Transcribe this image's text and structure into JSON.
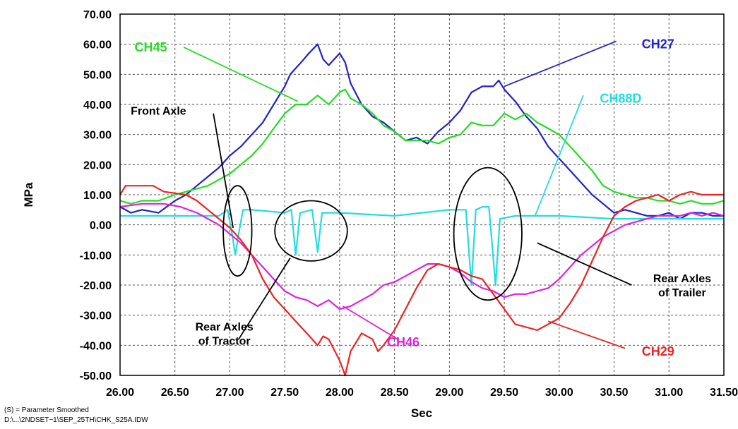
{
  "chart_data": {
    "type": "line",
    "title": "",
    "xlabel": "Sec",
    "ylabel": "MPa",
    "xlim": [
      26.0,
      31.5
    ],
    "ylim": [
      -50,
      70
    ],
    "grid": true,
    "x_ticks": [
      "26.00",
      "26.50",
      "27.00",
      "27.50",
      "28.00",
      "28.50",
      "29.00",
      "29.50",
      "30.00",
      "30.50",
      "31.00",
      "31.50"
    ],
    "y_ticks": [
      "70.00",
      "60.00",
      "50.00",
      "40.00",
      "30.00",
      "20.00",
      "10.00",
      "0.00",
      "-10.00",
      "-20.00",
      "-30.00",
      "-40.00",
      "-50.00"
    ],
    "series": [
      {
        "name": "CH27",
        "color": "#2222cc",
        "points": [
          [
            26.0,
            6
          ],
          [
            26.1,
            4
          ],
          [
            26.2,
            5
          ],
          [
            26.35,
            4
          ],
          [
            26.5,
            8
          ],
          [
            26.6,
            10
          ],
          [
            26.7,
            13
          ],
          [
            26.8,
            16
          ],
          [
            26.9,
            19
          ],
          [
            27.0,
            23
          ],
          [
            27.1,
            26
          ],
          [
            27.2,
            30
          ],
          [
            27.3,
            34
          ],
          [
            27.4,
            40
          ],
          [
            27.5,
            46
          ],
          [
            27.55,
            50
          ],
          [
            27.65,
            54
          ],
          [
            27.72,
            57
          ],
          [
            27.8,
            60
          ],
          [
            27.85,
            55
          ],
          [
            27.9,
            53
          ],
          [
            28.0,
            57
          ],
          [
            28.05,
            54
          ],
          [
            28.1,
            47
          ],
          [
            28.2,
            40
          ],
          [
            28.3,
            36
          ],
          [
            28.4,
            34
          ],
          [
            28.5,
            31
          ],
          [
            28.6,
            28
          ],
          [
            28.7,
            29
          ],
          [
            28.8,
            27
          ],
          [
            28.9,
            31
          ],
          [
            29.0,
            34
          ],
          [
            29.1,
            38
          ],
          [
            29.2,
            44
          ],
          [
            29.3,
            46
          ],
          [
            29.4,
            46
          ],
          [
            29.45,
            48
          ],
          [
            29.5,
            45
          ],
          [
            29.6,
            41
          ],
          [
            29.7,
            36
          ],
          [
            29.8,
            32
          ],
          [
            29.9,
            26
          ],
          [
            30.0,
            22
          ],
          [
            30.1,
            18
          ],
          [
            30.2,
            14
          ],
          [
            30.3,
            10
          ],
          [
            30.4,
            7
          ],
          [
            30.5,
            4
          ],
          [
            30.6,
            5
          ],
          [
            30.7,
            4
          ],
          [
            30.8,
            3
          ],
          [
            30.9,
            3
          ],
          [
            31.0,
            4
          ],
          [
            31.1,
            2
          ],
          [
            31.2,
            4
          ],
          [
            31.3,
            4
          ],
          [
            31.4,
            3
          ],
          [
            31.5,
            3
          ]
        ]
      },
      {
        "name": "CH45",
        "color": "#22dd22",
        "points": [
          [
            26.0,
            8
          ],
          [
            26.1,
            7
          ],
          [
            26.2,
            8
          ],
          [
            26.35,
            8
          ],
          [
            26.5,
            10
          ],
          [
            26.6,
            11
          ],
          [
            26.7,
            12
          ],
          [
            26.8,
            13
          ],
          [
            26.9,
            15
          ],
          [
            27.0,
            17
          ],
          [
            27.1,
            20
          ],
          [
            27.2,
            23
          ],
          [
            27.3,
            27
          ],
          [
            27.4,
            32
          ],
          [
            27.5,
            37
          ],
          [
            27.6,
            40
          ],
          [
            27.7,
            40
          ],
          [
            27.8,
            43
          ],
          [
            27.9,
            40
          ],
          [
            28.0,
            44
          ],
          [
            28.05,
            45
          ],
          [
            28.1,
            42
          ],
          [
            28.2,
            40
          ],
          [
            28.3,
            37
          ],
          [
            28.4,
            33
          ],
          [
            28.5,
            31
          ],
          [
            28.6,
            28
          ],
          [
            28.7,
            28
          ],
          [
            28.8,
            28
          ],
          [
            28.9,
            27
          ],
          [
            29.0,
            29
          ],
          [
            29.1,
            30
          ],
          [
            29.2,
            34
          ],
          [
            29.3,
            33
          ],
          [
            29.4,
            33
          ],
          [
            29.5,
            37
          ],
          [
            29.6,
            35
          ],
          [
            29.7,
            37
          ],
          [
            29.8,
            34
          ],
          [
            29.9,
            32
          ],
          [
            30.0,
            30
          ],
          [
            30.1,
            26
          ],
          [
            30.2,
            22
          ],
          [
            30.3,
            18
          ],
          [
            30.4,
            13
          ],
          [
            30.5,
            11
          ],
          [
            30.6,
            10
          ],
          [
            30.7,
            9
          ],
          [
            30.8,
            9
          ],
          [
            30.9,
            8
          ],
          [
            31.0,
            8
          ],
          [
            31.1,
            7
          ],
          [
            31.2,
            8
          ],
          [
            31.3,
            7
          ],
          [
            31.4,
            7
          ],
          [
            31.5,
            8
          ]
        ]
      },
      {
        "name": "CH88D",
        "color": "#22dddd",
        "points": [
          [
            26.0,
            3
          ],
          [
            26.3,
            3
          ],
          [
            26.6,
            3
          ],
          [
            26.9,
            3
          ],
          [
            26.98,
            5
          ],
          [
            27.02,
            -3
          ],
          [
            27.05,
            -10
          ],
          [
            27.08,
            -3
          ],
          [
            27.12,
            5
          ],
          [
            27.2,
            5
          ],
          [
            27.5,
            4
          ],
          [
            27.56,
            5
          ],
          [
            27.6,
            -10
          ],
          [
            27.64,
            4
          ],
          [
            27.75,
            5
          ],
          [
            27.8,
            -9
          ],
          [
            27.84,
            4
          ],
          [
            28.0,
            4
          ],
          [
            28.5,
            3
          ],
          [
            29.0,
            5
          ],
          [
            29.15,
            5
          ],
          [
            29.2,
            -20
          ],
          [
            29.24,
            5
          ],
          [
            29.3,
            6
          ],
          [
            29.36,
            6
          ],
          [
            29.42,
            -20
          ],
          [
            29.46,
            2
          ],
          [
            29.6,
            3
          ],
          [
            30.0,
            3
          ],
          [
            30.5,
            2
          ],
          [
            31.0,
            2
          ],
          [
            31.5,
            2
          ]
        ]
      },
      {
        "name": "CH46",
        "color": "#dd22dd",
        "points": [
          [
            26.0,
            6
          ],
          [
            26.2,
            7
          ],
          [
            26.4,
            7
          ],
          [
            26.55,
            6
          ],
          [
            26.7,
            4
          ],
          [
            26.8,
            2
          ],
          [
            26.9,
            0
          ],
          [
            27.0,
            -3
          ],
          [
            27.1,
            -6
          ],
          [
            27.2,
            -10
          ],
          [
            27.3,
            -14
          ],
          [
            27.4,
            -18
          ],
          [
            27.5,
            -22
          ],
          [
            27.6,
            -24
          ],
          [
            27.7,
            -25
          ],
          [
            27.8,
            -27
          ],
          [
            27.9,
            -25
          ],
          [
            28.0,
            -28
          ],
          [
            28.1,
            -27
          ],
          [
            28.2,
            -25
          ],
          [
            28.3,
            -23
          ],
          [
            28.4,
            -20
          ],
          [
            28.5,
            -19
          ],
          [
            28.6,
            -17
          ],
          [
            28.7,
            -15
          ],
          [
            28.8,
            -13
          ],
          [
            28.9,
            -13
          ],
          [
            29.0,
            -14
          ],
          [
            29.1,
            -16
          ],
          [
            29.2,
            -19
          ],
          [
            29.3,
            -21
          ],
          [
            29.4,
            -22
          ],
          [
            29.5,
            -24
          ],
          [
            29.6,
            -23
          ],
          [
            29.7,
            -23
          ],
          [
            29.8,
            -22
          ],
          [
            29.9,
            -21
          ],
          [
            30.0,
            -18
          ],
          [
            30.1,
            -14
          ],
          [
            30.2,
            -10
          ],
          [
            30.3,
            -7
          ],
          [
            30.4,
            -4
          ],
          [
            30.5,
            -2
          ],
          [
            30.6,
            0
          ],
          [
            30.7,
            1
          ],
          [
            30.8,
            2
          ],
          [
            30.9,
            3
          ],
          [
            31.0,
            3
          ],
          [
            31.1,
            3
          ],
          [
            31.2,
            4
          ],
          [
            31.3,
            3
          ],
          [
            31.4,
            4
          ],
          [
            31.5,
            3
          ]
        ]
      },
      {
        "name": "CH29",
        "color": "#ee2222",
        "points": [
          [
            26.0,
            10
          ],
          [
            26.05,
            13
          ],
          [
            26.15,
            13
          ],
          [
            26.3,
            13
          ],
          [
            26.4,
            11
          ],
          [
            26.6,
            10
          ],
          [
            26.7,
            8
          ],
          [
            26.8,
            5
          ],
          [
            26.9,
            2
          ],
          [
            27.0,
            -1
          ],
          [
            27.1,
            -5
          ],
          [
            27.2,
            -10
          ],
          [
            27.3,
            -18
          ],
          [
            27.4,
            -24
          ],
          [
            27.5,
            -28
          ],
          [
            27.6,
            -32
          ],
          [
            27.7,
            -36
          ],
          [
            27.8,
            -40
          ],
          [
            27.85,
            -37
          ],
          [
            27.9,
            -38
          ],
          [
            28.0,
            -45
          ],
          [
            28.05,
            -50
          ],
          [
            28.1,
            -42
          ],
          [
            28.2,
            -36
          ],
          [
            28.3,
            -38
          ],
          [
            28.35,
            -42
          ],
          [
            28.4,
            -40
          ],
          [
            28.5,
            -35
          ],
          [
            28.6,
            -28
          ],
          [
            28.7,
            -21
          ],
          [
            28.8,
            -15
          ],
          [
            28.9,
            -13
          ],
          [
            29.0,
            -14
          ],
          [
            29.1,
            -15
          ],
          [
            29.2,
            -17
          ],
          [
            29.3,
            -18
          ],
          [
            29.4,
            -23
          ],
          [
            29.5,
            -28
          ],
          [
            29.6,
            -33
          ],
          [
            29.7,
            -34
          ],
          [
            29.8,
            -35
          ],
          [
            29.9,
            -33
          ],
          [
            30.0,
            -31
          ],
          [
            30.1,
            -26
          ],
          [
            30.2,
            -20
          ],
          [
            30.3,
            -12
          ],
          [
            30.4,
            -4
          ],
          [
            30.5,
            3
          ],
          [
            30.6,
            6
          ],
          [
            30.7,
            8
          ],
          [
            30.8,
            9
          ],
          [
            30.9,
            10
          ],
          [
            31.0,
            8
          ],
          [
            31.1,
            10
          ],
          [
            31.2,
            11
          ],
          [
            31.3,
            10
          ],
          [
            31.4,
            10
          ],
          [
            31.5,
            10
          ]
        ]
      }
    ],
    "series_labels": [
      {
        "text": "CH45",
        "series": "CH45",
        "label_x": 26.28,
        "label_y": 59,
        "pointer": [
          [
            26.58,
            59
          ],
          [
            27.62,
            41
          ]
        ]
      },
      {
        "text": "CH27",
        "series": "CH27",
        "label_x": 30.9,
        "label_y": 60,
        "pointer": [
          [
            30.52,
            61
          ],
          [
            29.5,
            46
          ]
        ]
      },
      {
        "text": "CH88D",
        "series": "CH88D",
        "label_x": 30.56,
        "label_y": 42,
        "pointer": [
          [
            30.22,
            43
          ],
          [
            29.78,
            3
          ]
        ]
      },
      {
        "text": "CH46",
        "series": "CH46",
        "label_x": 28.58,
        "label_y": -39,
        "pointer": [
          [
            28.53,
            -38
          ],
          [
            28.03,
            -27
          ]
        ]
      },
      {
        "text": "CH29",
        "series": "CH29",
        "label_x": 30.9,
        "label_y": -42,
        "pointer": [
          [
            30.6,
            -41
          ],
          [
            29.9,
            -32
          ]
        ]
      }
    ],
    "annotations": [
      {
        "lines": [
          "Front Axle"
        ],
        "label_x": 26.35,
        "label_y": 38,
        "color": "#000000",
        "pointer": [
          [
            26.85,
            37
          ],
          [
            27.03,
            -1
          ]
        ]
      },
      {
        "lines": [
          "Rear Axles",
          "of Tractor"
        ],
        "label_x": 26.95,
        "label_y": -36,
        "color": "#000000",
        "pointer": [
          [
            27.08,
            -38
          ],
          [
            27.55,
            -11
          ]
        ]
      },
      {
        "lines": [
          "Rear Axles",
          "of Trailer"
        ],
        "label_x": 31.12,
        "label_y": -20,
        "color": "#000000",
        "pointer": [
          [
            30.66,
            -20
          ],
          [
            29.8,
            -6
          ]
        ]
      }
    ],
    "ellipses": [
      {
        "cx": 27.07,
        "cy": -2,
        "rx": 0.13,
        "ry": 15
      },
      {
        "cx": 27.74,
        "cy": -2,
        "rx": 0.33,
        "ry": 10
      },
      {
        "cx": 29.35,
        "cy": -3,
        "rx": 0.31,
        "ry": 22
      }
    ]
  },
  "footer": {
    "note": "(S) = Parameter Smoothed",
    "path": "D:\\...\\2NDSET~1\\SEP_25TH\\CHK_S25A.IDW"
  }
}
